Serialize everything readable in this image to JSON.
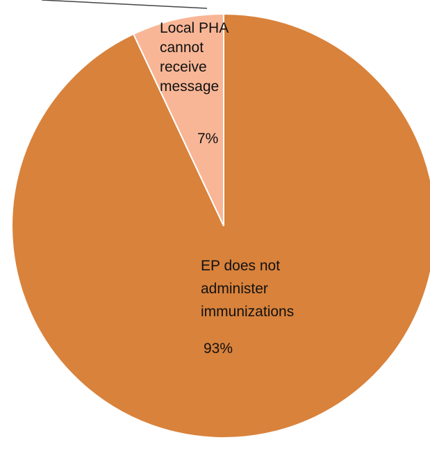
{
  "chart_data": {
    "type": "pie",
    "title": "",
    "slices": [
      {
        "label_lines": [
          "EP does not",
          "administer",
          "immunizations"
        ],
        "value": 93,
        "display": "93%",
        "color": "#D9823B"
      },
      {
        "label_lines": [
          "Local PHA",
          "cannot",
          "receive",
          "message"
        ],
        "value": 7,
        "display": "7%",
        "color": "#F8B696"
      }
    ],
    "legend": "none",
    "slice_border_color": "#ffffff"
  }
}
